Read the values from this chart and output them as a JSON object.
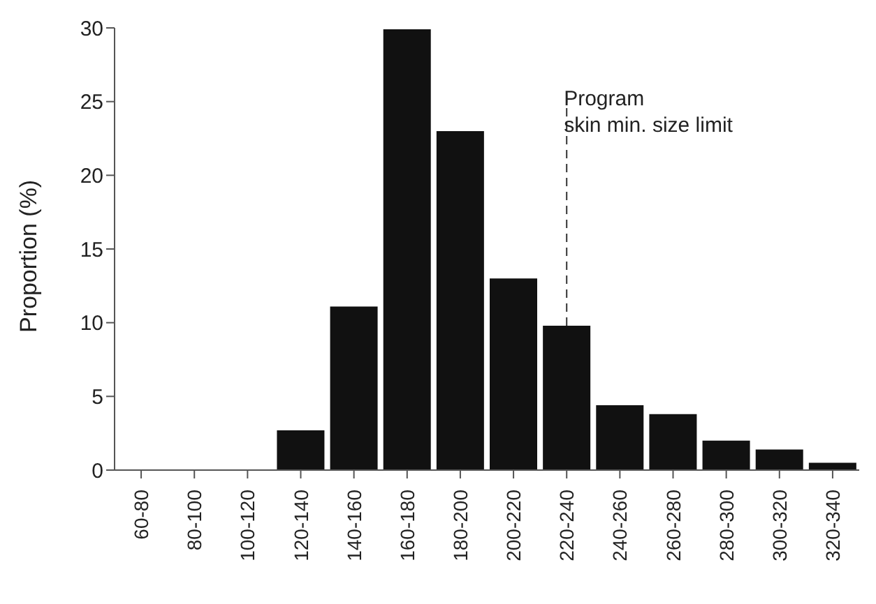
{
  "chart_data": {
    "type": "bar",
    "ylabel": "Proportion (%)",
    "categories": [
      "60-80",
      "80-100",
      "100-120",
      "120-140",
      "140-160",
      "160-180",
      "180-200",
      "200-220",
      "220-240",
      "240-260",
      "260-280",
      "280-300",
      "300-320",
      "320-340"
    ],
    "values": [
      0,
      0,
      0,
      2.7,
      11.1,
      29.9,
      23,
      13,
      9.8,
      4.4,
      3.8,
      2,
      1.4,
      0.5
    ],
    "color": "#111111",
    "ylim": [
      0,
      30
    ],
    "yticks": [
      0,
      5,
      10,
      15,
      20,
      25,
      30
    ],
    "grid": false,
    "legend": false,
    "ref_lines": [
      {
        "axis": "x",
        "value": "220-240",
        "label": "Program\nskin min. size limit",
        "line_style": "dashed",
        "color": "#333333"
      }
    ]
  }
}
